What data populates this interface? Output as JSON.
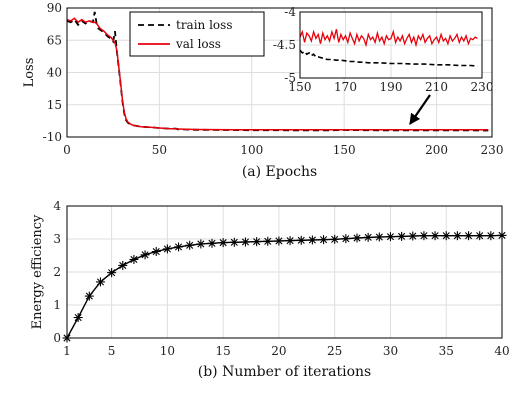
{
  "chart_data": [
    {
      "type": "line",
      "xlabel": "(a) Epochs",
      "ylabel": "Loss",
      "xlim": [
        0,
        230
      ],
      "ylim": [
        -10,
        90
      ],
      "xticks": [
        "0",
        "50",
        "100",
        "150",
        "200",
        "230"
      ],
      "yticks": [
        "90",
        "65",
        "40",
        "15",
        "-10"
      ],
      "grid": true,
      "legend_position": "top-left",
      "series": [
        {
          "name": "train loss",
          "color": "#000000",
          "style": "dashed",
          "x": [
            0,
            2,
            4,
            6,
            8,
            10,
            12,
            14,
            15,
            16,
            17,
            18,
            20,
            22,
            24,
            25,
            26,
            27,
            28,
            29,
            30,
            31,
            32,
            33,
            34,
            35,
            36,
            38,
            40,
            45,
            50,
            55,
            57,
            58,
            59,
            60,
            62,
            65,
            70,
            80,
            90,
            100,
            110,
            120,
            130,
            140,
            150,
            160,
            170,
            180,
            190,
            200,
            210,
            220,
            228
          ],
          "y": [
            80,
            79,
            81,
            77,
            80,
            78,
            80,
            79,
            87,
            78,
            74,
            73,
            71,
            68,
            66,
            64,
            72,
            56,
            44,
            31,
            18,
            8,
            3,
            1,
            0,
            -0.5,
            -1,
            -1.5,
            -2,
            -2.5,
            -3,
            -3.5,
            -3.5,
            -3.5,
            -3.5,
            -4,
            -4,
            -4.2,
            -4.4,
            -4.5,
            -4.6,
            -4.7,
            -4.75,
            -4.8,
            -4.82,
            -4.85,
            -4.6,
            -4.72,
            -4.8,
            -4.82,
            -4.85,
            -4.88,
            -4.9,
            -4.92,
            -4.93
          ]
        },
        {
          "name": "val loss",
          "color": "#e8000b",
          "style": "solid",
          "x": [
            0,
            2,
            4,
            6,
            8,
            10,
            12,
            14,
            15,
            16,
            17,
            18,
            20,
            22,
            24,
            25,
            26,
            27,
            28,
            29,
            30,
            31,
            32,
            33,
            34,
            35,
            36,
            38,
            40,
            45,
            50,
            55,
            60,
            65,
            70,
            80,
            90,
            100,
            110,
            120,
            130,
            140,
            150,
            160,
            170,
            180,
            190,
            200,
            210,
            220,
            228
          ],
          "y": [
            81,
            80,
            82,
            79,
            81,
            79,
            80,
            79,
            79,
            78,
            76,
            74,
            72,
            69,
            67,
            65,
            63,
            57,
            45,
            32,
            19,
            9,
            4,
            1.5,
            0.5,
            -0.5,
            -1,
            -1.5,
            -2,
            -2.5,
            -3,
            -3.5,
            -3.8,
            -4,
            -4.2,
            -4.3,
            -4.35,
            -4.4,
            -4.4,
            -4.4,
            -4.4,
            -4.4,
            -4.38,
            -4.35,
            -4.4,
            -4.38,
            -4.4,
            -4.4,
            -4.38,
            -4.4,
            -4.4
          ]
        }
      ],
      "inset": {
        "xlim": [
          150,
          230
        ],
        "ylim": [
          -5,
          -4
        ],
        "xticks": [
          "150",
          "170",
          "190",
          "210",
          "230"
        ],
        "yticks": [
          "-4",
          "-4.5",
          "-5"
        ],
        "series": [
          {
            "name": "train loss",
            "x": [
              150,
              151,
              152,
              153,
              154,
              155,
              156,
              157,
              158,
              160,
              162,
              164,
              166,
              168,
              170,
              172,
              174,
              176,
              178,
              180,
              185,
              190,
              195,
              200,
              205,
              210,
              215,
              220,
              225,
              228
            ],
            "y": [
              -4.58,
              -4.62,
              -4.6,
              -4.64,
              -4.62,
              -4.66,
              -4.64,
              -4.68,
              -4.68,
              -4.7,
              -4.72,
              -4.72,
              -4.73,
              -4.73,
              -4.74,
              -4.75,
              -4.75,
              -4.76,
              -4.76,
              -4.77,
              -4.77,
              -4.78,
              -4.78,
              -4.79,
              -4.79,
              -4.8,
              -4.8,
              -4.81,
              -4.81,
              -4.82
            ]
          },
          {
            "name": "val loss",
            "x": [
              150,
              151,
              152,
              153,
              154,
              155,
              156,
              157,
              158,
              159,
              160,
              161,
              162,
              163,
              164,
              165,
              166,
              167,
              168,
              169,
              170,
              171,
              172,
              173,
              174,
              175,
              176,
              177,
              178,
              179,
              180,
              181,
              182,
              183,
              184,
              185,
              186,
              187,
              188,
              189,
              190,
              191,
              192,
              193,
              194,
              195,
              196,
              197,
              198,
              199,
              200,
              201,
              202,
              203,
              204,
              205,
              206,
              207,
              208,
              209,
              210,
              211,
              212,
              213,
              214,
              215,
              216,
              217,
              218,
              219,
              220,
              221,
              222,
              223,
              224,
              225,
              226,
              227,
              228
            ],
            "y": [
              -4.38,
              -4.3,
              -4.46,
              -4.32,
              -4.36,
              -4.44,
              -4.3,
              -4.4,
              -4.34,
              -4.48,
              -4.32,
              -4.42,
              -4.36,
              -4.44,
              -4.3,
              -4.4,
              -4.26,
              -4.46,
              -4.34,
              -4.42,
              -4.36,
              -4.46,
              -4.32,
              -4.4,
              -4.48,
              -4.34,
              -4.44,
              -4.36,
              -4.4,
              -4.5,
              -4.34,
              -4.42,
              -4.38,
              -4.46,
              -4.32,
              -4.44,
              -4.38,
              -4.48,
              -4.36,
              -4.42,
              -4.4,
              -4.3,
              -4.46,
              -4.38,
              -4.44,
              -4.36,
              -4.48,
              -4.4,
              -4.34,
              -4.46,
              -4.38,
              -4.5,
              -4.36,
              -4.42,
              -4.34,
              -4.46,
              -4.4,
              -4.36,
              -4.48,
              -4.42,
              -4.38,
              -4.46,
              -4.34,
              -4.44,
              -4.4,
              -4.48,
              -4.36,
              -4.44,
              -4.4,
              -4.34,
              -4.46,
              -4.38,
              -4.44,
              -4.36,
              -4.48,
              -4.4,
              -4.42,
              -4.38,
              -4.4
            ]
          }
        ]
      }
    },
    {
      "type": "line",
      "xlabel": "(b) Number of iterations",
      "ylabel": "Energy efficiency",
      "xlim": [
        1,
        40
      ],
      "ylim": [
        0,
        4
      ],
      "xticks": [
        "1",
        "5",
        "10",
        "15",
        "20",
        "25",
        "30",
        "35",
        "40"
      ],
      "yticks": [
        "4",
        "3",
        "2",
        "1",
        "0"
      ],
      "grid": true,
      "series": [
        {
          "color": "#000000",
          "marker": "asterisk",
          "x": [
            1,
            2,
            3,
            4,
            5,
            6,
            7,
            8,
            9,
            10,
            11,
            12,
            13,
            14,
            15,
            16,
            17,
            18,
            19,
            20,
            21,
            22,
            23,
            24,
            25,
            26,
            27,
            28,
            29,
            30,
            31,
            32,
            33,
            34,
            35,
            36,
            37,
            38,
            39,
            40
          ],
          "y": [
            0,
            0.62,
            1.27,
            1.7,
            1.98,
            2.2,
            2.38,
            2.52,
            2.62,
            2.7,
            2.76,
            2.81,
            2.85,
            2.87,
            2.89,
            2.9,
            2.91,
            2.92,
            2.93,
            2.94,
            2.95,
            2.96,
            2.97,
            2.98,
            2.99,
            3.01,
            3.03,
            3.05,
            3.06,
            3.07,
            3.08,
            3.09,
            3.1,
            3.1,
            3.1,
            3.1,
            3.1,
            3.1,
            3.1,
            3.11
          ]
        }
      ]
    }
  ]
}
